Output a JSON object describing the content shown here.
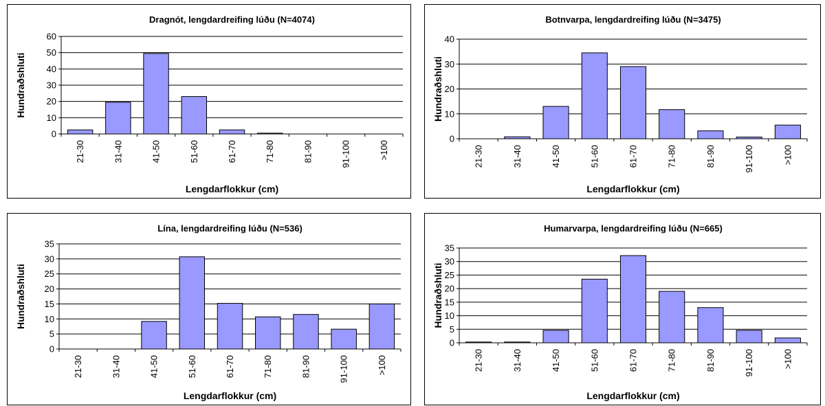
{
  "style": {
    "bar_fill": "#9999ff",
    "bar_stroke": "#000000",
    "grid": "#000000"
  },
  "chart_data": [
    {
      "type": "bar",
      "title": "Dragnót, lengdardreifing lúðu (N=4074)",
      "xlabel": "Lengdarflokkur (cm)",
      "ylabel": "Hundraðshluti",
      "categories": [
        "21-30",
        "31-40",
        "41-50",
        "51-60",
        "61-70",
        "71-80",
        "81-90",
        "91-100",
        ">100"
      ],
      "values": [
        2.5,
        19.5,
        49.5,
        23,
        2.5,
        0.5,
        0,
        0,
        0
      ],
      "ylim": [
        0,
        60
      ],
      "yticks": [
        "0",
        "10",
        "20",
        "30",
        "40",
        "50",
        "60"
      ],
      "grid": true,
      "legend": "none"
    },
    {
      "type": "bar",
      "title": "Botnvarpa, lengdardreifing lúðu (N=3475)",
      "xlabel": "Lengdarflokkur (cm)",
      "ylabel": "Hundraðshluti",
      "categories": [
        "21-30",
        "31-40",
        "41-50",
        "51-60",
        "61-70",
        "71-80",
        "81-90",
        "91-100",
        ">100"
      ],
      "values": [
        0,
        0.8,
        13,
        34.5,
        29,
        11.7,
        3.2,
        0.7,
        5.5
      ],
      "ylim": [
        0,
        40
      ],
      "yticks": [
        "0",
        "10",
        "20",
        "30",
        "40"
      ],
      "grid": true,
      "legend": "none"
    },
    {
      "type": "bar",
      "title": "Lína, lengdardreifing lúðu (N=536)",
      "xlabel": "Lengdarflokkur (cm)",
      "ylabel": "Hundraðshluti",
      "categories": [
        "21-30",
        "31-40",
        "41-50",
        "51-60",
        "61-70",
        "71-80",
        "81-90",
        "91-100",
        ">100"
      ],
      "values": [
        0,
        0,
        9.2,
        30.7,
        15.2,
        10.7,
        11.5,
        6.6,
        15
      ],
      "ylim": [
        0,
        35
      ],
      "yticks": [
        "0",
        "5",
        "10",
        "15",
        "20",
        "25",
        "30",
        "35"
      ],
      "grid": true,
      "legend": "none"
    },
    {
      "type": "bar",
      "title": "Humarvarpa, lengdardreifing lúðu (N=665)",
      "xlabel": "Lengdarflokkur (cm)",
      "ylabel": "Hundraðshluti",
      "categories": [
        "21-30",
        "31-40",
        "41-50",
        "51-60",
        "61-70",
        "71-80",
        "81-90",
        "91-100",
        ">100"
      ],
      "values": [
        0.3,
        0.3,
        4.6,
        23.5,
        32.2,
        19,
        13,
        4.6,
        1.8
      ],
      "ylim": [
        0,
        35
      ],
      "yticks": [
        "0",
        "5",
        "10",
        "15",
        "20",
        "25",
        "30",
        "35"
      ],
      "grid": true,
      "legend": "none"
    }
  ]
}
